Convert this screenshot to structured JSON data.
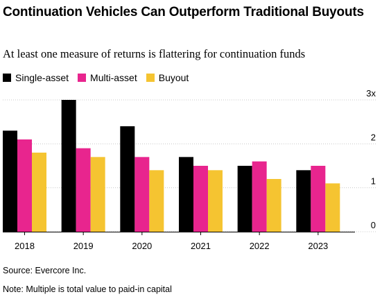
{
  "title": "Continuation Vehicles Can Outperform Traditional Buyouts",
  "subtitle": "At least one measure of returns is flattering for continuation funds",
  "source": "Source: Evercore Inc.",
  "note": "Note: Multiple is total value to paid-in capital",
  "chart_data": {
    "type": "bar",
    "categories": [
      "2018",
      "2019",
      "2020",
      "2021",
      "2022",
      "2023"
    ],
    "series": [
      {
        "name": "Single-asset",
        "color": "#000000",
        "values": [
          2.3,
          3.0,
          2.4,
          1.7,
          1.5,
          1.4
        ]
      },
      {
        "name": "Multi-asset",
        "color": "#e8258e",
        "values": [
          2.1,
          1.9,
          1.7,
          1.5,
          1.6,
          1.5
        ]
      },
      {
        "name": "Buyout",
        "color": "#f5c431",
        "values": [
          1.8,
          1.7,
          1.4,
          1.4,
          1.2,
          1.1
        ]
      }
    ],
    "ylim": [
      0,
      3
    ],
    "yticks": [
      {
        "value": 0,
        "label": "0"
      },
      {
        "value": 1,
        "label": "1"
      },
      {
        "value": 2,
        "label": "2"
      },
      {
        "value": 3,
        "label": "3x"
      }
    ],
    "grid": true,
    "legend": "top-left"
  }
}
